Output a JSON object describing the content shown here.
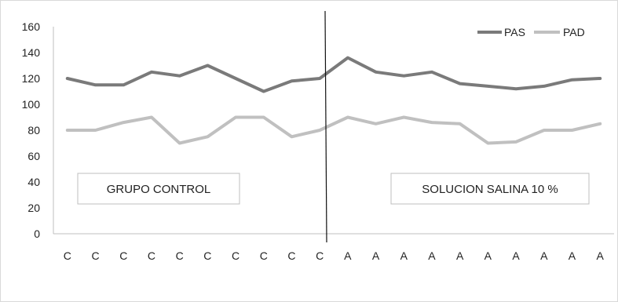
{
  "chart_data": {
    "type": "line",
    "categories": [
      "C",
      "C",
      "C",
      "C",
      "C",
      "C",
      "C",
      "C",
      "C",
      "C",
      "A",
      "A",
      "A",
      "A",
      "A",
      "A",
      "A",
      "A",
      "A",
      "A"
    ],
    "series": [
      {
        "name": "PAS",
        "color": "#7a7a7a",
        "values": [
          120,
          115,
          115,
          125,
          122,
          130,
          120,
          110,
          118,
          120,
          136,
          125,
          122,
          125,
          116,
          114,
          112,
          114,
          119,
          120
        ]
      },
      {
        "name": "PAD",
        "color": "#c0c0c0",
        "values": [
          80,
          80,
          86,
          90,
          70,
          75,
          90,
          90,
          75,
          80,
          90,
          85,
          90,
          86,
          85,
          70,
          71,
          80,
          80,
          85
        ]
      }
    ],
    "ylim": [
      0,
      160
    ],
    "yticks": [
      "0",
      "20",
      "40",
      "60",
      "80",
      "100",
      "120",
      "140",
      "160"
    ],
    "grid": false,
    "legend_position": "top-right",
    "divider_after_category": 10,
    "group_labels": [
      "GRUPO CONTROL",
      "SOLUCION SALINA 10 %"
    ]
  }
}
